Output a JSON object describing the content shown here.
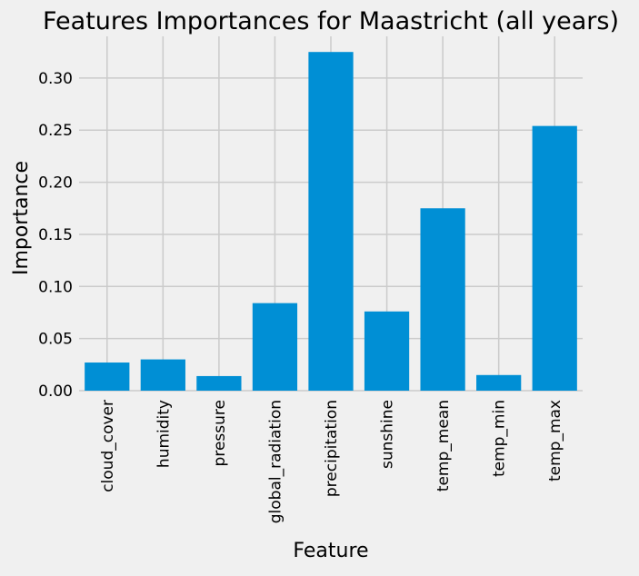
{
  "chart_data": {
    "type": "bar",
    "title": "Features Importances for Maastricht (all years)",
    "xlabel": "Feature",
    "ylabel": "Importance",
    "categories": [
      "cloud_cover",
      "humidity",
      "pressure",
      "global_radiation",
      "precipitation",
      "sunshine",
      "temp_mean",
      "temp_min",
      "temp_max"
    ],
    "values": [
      0.027,
      0.03,
      0.014,
      0.084,
      0.325,
      0.076,
      0.175,
      0.015,
      0.254
    ],
    "ylim": [
      0,
      0.34
    ],
    "yticks": [
      0.0,
      0.05,
      0.1,
      0.15,
      0.2,
      0.25,
      0.3
    ],
    "ytick_labels": [
      "0.00",
      "0.05",
      "0.10",
      "0.15",
      "0.20",
      "0.25",
      "0.30"
    ],
    "grid": true,
    "colors": {
      "bar": "#008fd5",
      "grid": "#cbcbcb",
      "background": "#f0f0f0"
    }
  }
}
